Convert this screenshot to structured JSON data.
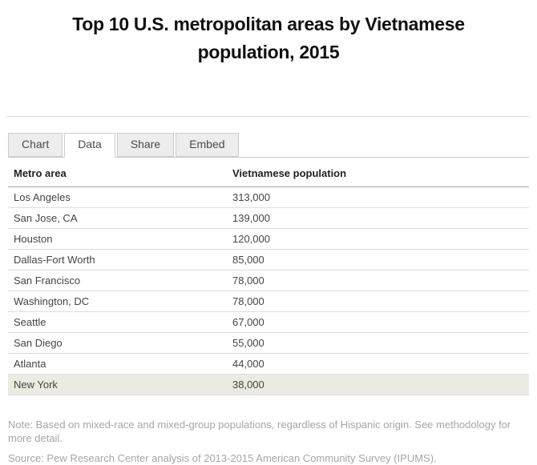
{
  "header": {
    "title": "Top 10 U.S. metropolitan areas by Vietnamese population, 2015"
  },
  "tabs": [
    {
      "label": "Chart",
      "active": false
    },
    {
      "label": "Data",
      "active": true
    },
    {
      "label": "Share",
      "active": false
    },
    {
      "label": "Embed",
      "active": false
    }
  ],
  "table": {
    "columns": [
      "Metro area",
      "Vietnamese population"
    ],
    "rows": [
      {
        "metro": "Los Angeles",
        "population": "313,000"
      },
      {
        "metro": "San Jose, CA",
        "population": "139,000"
      },
      {
        "metro": "Houston",
        "population": "120,000"
      },
      {
        "metro": "Dallas-Fort Worth",
        "population": "85,000"
      },
      {
        "metro": "San Francisco",
        "population": "78,000"
      },
      {
        "metro": "Washington, DC",
        "population": "78,000"
      },
      {
        "metro": "Seattle",
        "population": "67,000"
      },
      {
        "metro": "San Diego",
        "population": "55,000"
      },
      {
        "metro": "Atlanta",
        "population": "44,000"
      },
      {
        "metro": "New York",
        "population": "38,000",
        "highlighted": true
      }
    ],
    "highlight_color": "#ebebe1"
  },
  "footer": {
    "note": "Note: Based on mixed-race and mixed-group populations, regardless of Hispanic origin. See methodology for more detail.",
    "source": "Source: Pew Research Center analysis of 2013-2015 American Community Survey (IPUMS)."
  },
  "chart_data": {
    "type": "table",
    "title": "Top 10 U.S. metropolitan areas by Vietnamese population, 2015",
    "columns": [
      "Metro area",
      "Vietnamese population"
    ],
    "categories": [
      "Los Angeles",
      "San Jose, CA",
      "Houston",
      "Dallas-Fort Worth",
      "San Francisco",
      "Washington, DC",
      "Seattle",
      "San Diego",
      "Atlanta",
      "New York"
    ],
    "values": [
      313000,
      139000,
      120000,
      85000,
      78000,
      78000,
      67000,
      55000,
      44000,
      38000
    ],
    "legend": "none",
    "grid": "row-separators"
  }
}
